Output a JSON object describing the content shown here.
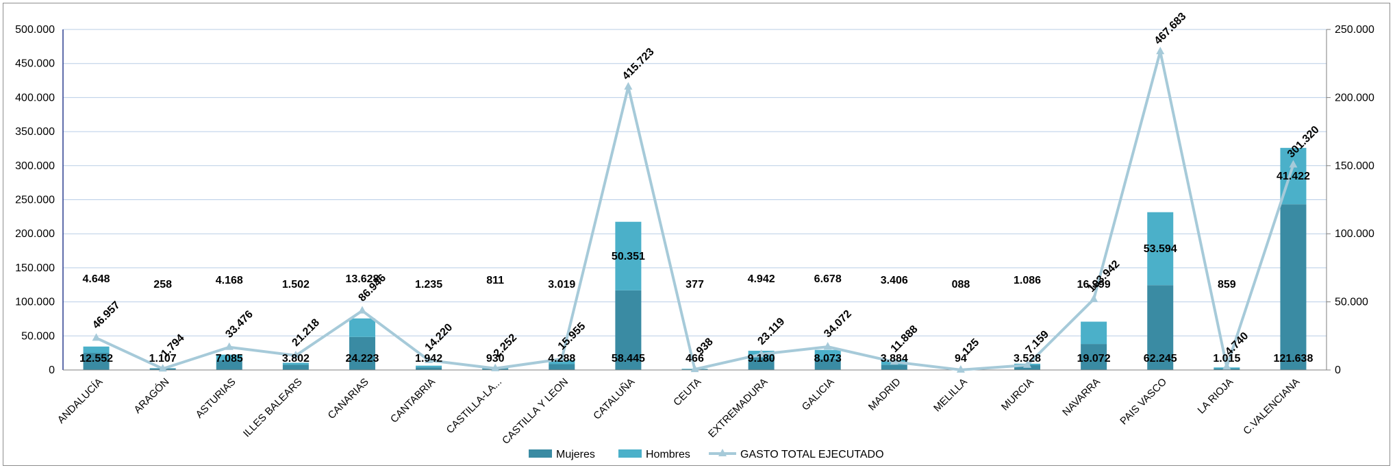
{
  "chart_data": {
    "type": "bar",
    "stacked": true,
    "categories": [
      "ANDALUCÍA",
      "ARAGÓN",
      "ASTURIAS",
      "ILLES BALEARS",
      "CANARIAS",
      "CANTABRIA",
      "CASTILLA-LA...",
      "CASTILLA Y LEON",
      "CATALUÑA",
      "CEUTA",
      "EXTREMADURA",
      "GALICIA",
      "MADRID",
      "MELILLA",
      "MURCIA",
      "NAVARRA",
      "PAIS VASCO",
      "LA RIOJA",
      "C.VALENCIANA"
    ],
    "series": [
      {
        "name": "Mujeres",
        "axis": "left",
        "color": "#3a8ba3",
        "values": [
          25104,
          2214,
          14170,
          7604,
          48446,
          3884,
          1860,
          8576,
          116890,
          932,
          18360,
          16146,
          7768,
          188,
          7056,
          38144,
          124490,
          2030,
          243276
        ],
        "labels": [
          "12.552",
          "1.107",
          "7.085",
          "3.802",
          "24.223",
          "1.942",
          "930",
          "4.288",
          "58.445",
          "466",
          "9.180",
          "8.073",
          "3.884",
          "94",
          "3.528",
          "19.072",
          "62.245",
          "1.015",
          "121.638"
        ]
      },
      {
        "name": "Hombres",
        "axis": "left",
        "color": "#4bb0c9",
        "values": [
          9296,
          516,
          8336,
          3004,
          27256,
          2470,
          1622,
          6038,
          100702,
          754,
          9884,
          13356,
          6812,
          176,
          2172,
          32798,
          107188,
          1718,
          82844
        ],
        "labels": [
          "4.648",
          "258",
          "4.168",
          "1.502",
          "13.628",
          "1.235",
          "811",
          "3.019",
          "50.351",
          "377",
          "4.942",
          "6.678",
          "3.406",
          "088",
          "1.086",
          "16.399",
          "53.594",
          "859",
          "41.422"
        ]
      },
      {
        "name": "GASTO TOTAL EJECUTADO",
        "axis": "right",
        "color": "#a6cad9",
        "values": [
          23479,
          897,
          16738,
          10609,
          43473,
          7110,
          1126,
          7978,
          207862,
          469,
          11560,
          17036,
          5944,
          63,
          3580,
          51971,
          233842,
          2370,
          150660
        ],
        "labels": [
          "46.957",
          "1.794",
          "33.476",
          "21.218",
          "86.946",
          "14.220",
          "2.252",
          "15.955",
          "415.723",
          "938",
          "23.119",
          "34.072",
          "11.888",
          "125",
          "7.159",
          "103.942",
          "467.683",
          "4.740",
          "301.320"
        ]
      }
    ],
    "y_left": {
      "ylim": [
        0,
        500000
      ],
      "ticks": [
        "0",
        "50.000",
        "100.000",
        "150.000",
        "200.000",
        "250.000",
        "300.000",
        "350.000",
        "400.000",
        "450.000",
        "500.000"
      ]
    },
    "y_right": {
      "ylim": [
        0,
        250000
      ],
      "ticks": [
        "0",
        "50.000",
        "100.000",
        "150.000",
        "200.000",
        "250.000"
      ]
    },
    "grid": true,
    "legend_position": "bottom"
  }
}
